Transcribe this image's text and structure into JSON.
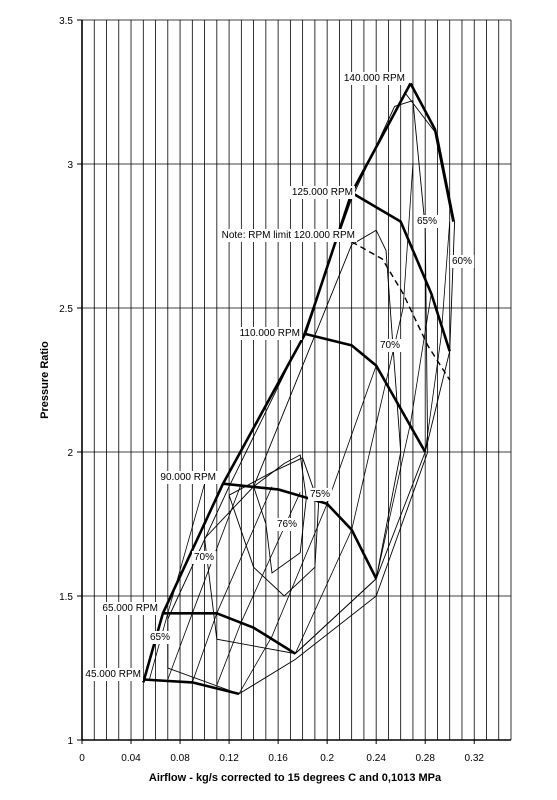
{
  "chart_data": {
    "type": "line",
    "xlabel": "Airflow - kg/s corrected to 15 degrees C and 0,1013 MPa",
    "ylabel": "Pressure Ratio",
    "xlim": [
      0,
      0.35
    ],
    "ylim": [
      1,
      3.5
    ],
    "x_ticks": [
      0,
      0.04,
      0.08,
      0.12,
      0.16,
      0.2,
      0.24,
      0.28,
      0.32
    ],
    "x_tick_labels": [
      "0",
      "0.04",
      "0.08",
      "0.12",
      "0.16",
      "0.2",
      "0.24",
      "0.28",
      "0.32"
    ],
    "y_ticks": [
      1,
      1.5,
      2,
      2.5,
      3,
      3.5
    ],
    "y_tick_labels": [
      "1",
      "1.5",
      "2",
      "2.5",
      "3",
      "3.5"
    ],
    "grid": "on",
    "speed_lines": [
      {
        "label": "140.000 RPM",
        "points": [
          [
            0.268,
            3.28
          ],
          [
            0.288,
            3.12
          ],
          [
            0.303,
            2.8
          ]
        ]
      },
      {
        "label": "125.000 RPM",
        "points": [
          [
            0.22,
            2.9
          ],
          [
            0.26,
            2.8
          ],
          [
            0.285,
            2.55
          ],
          [
            0.3,
            2.35
          ]
        ]
      },
      {
        "label": "110.000 RPM",
        "points": [
          [
            0.182,
            2.41
          ],
          [
            0.22,
            2.37
          ],
          [
            0.24,
            2.3
          ],
          [
            0.28,
            2.0
          ]
        ]
      },
      {
        "label": "90.000 RPM",
        "points": [
          [
            0.115,
            1.89
          ],
          [
            0.16,
            1.87
          ],
          [
            0.2,
            1.82
          ],
          [
            0.22,
            1.73
          ],
          [
            0.24,
            1.56
          ]
        ]
      },
      {
        "label": "65.000 RPM",
        "points": [
          [
            0.066,
            1.44
          ],
          [
            0.11,
            1.44
          ],
          [
            0.14,
            1.39
          ],
          [
            0.174,
            1.3
          ]
        ]
      },
      {
        "label": "45.000 RPM",
        "points": [
          [
            0.05,
            1.21
          ],
          [
            0.09,
            1.2
          ],
          [
            0.128,
            1.16
          ]
        ]
      }
    ],
    "surge_line": [
      [
        0.05,
        1.2
      ],
      [
        0.066,
        1.44
      ],
      [
        0.115,
        1.89
      ],
      [
        0.182,
        2.41
      ],
      [
        0.22,
        2.9
      ],
      [
        0.268,
        3.28
      ]
    ],
    "rpm_limit_line": {
      "label": "Note: RPM limit 120.000 RPM",
      "points": [
        [
          0.22,
          2.73
        ],
        [
          0.245,
          2.67
        ],
        [
          0.262,
          2.55
        ],
        [
          0.282,
          2.37
        ],
        [
          0.3,
          2.25
        ]
      ]
    },
    "efficiency_labels": [
      "65%",
      "60%",
      "70%",
      "75%",
      "76%",
      "70%",
      "65%"
    ],
    "efficiency_islands": [
      {
        "label": "76%",
        "points": [
          [
            0.14,
            1.88
          ],
          [
            0.165,
            1.96
          ],
          [
            0.178,
            1.99
          ],
          [
            0.183,
            1.84
          ],
          [
            0.178,
            1.65
          ],
          [
            0.155,
            1.58
          ],
          [
            0.15,
            1.75
          ],
          [
            0.14,
            1.88
          ]
        ]
      },
      {
        "label": "75%",
        "points": [
          [
            0.12,
            1.85
          ],
          [
            0.155,
            1.93
          ],
          [
            0.18,
            1.98
          ],
          [
            0.193,
            1.82
          ],
          [
            0.19,
            1.6
          ],
          [
            0.165,
            1.5
          ],
          [
            0.14,
            1.6
          ],
          [
            0.12,
            1.85
          ]
        ]
      },
      {
        "label": "70%",
        "points": [
          [
            0.1,
            1.7
          ],
          [
            0.14,
            1.88
          ],
          [
            0.22,
            2.72
          ],
          [
            0.24,
            2.77
          ],
          [
            0.248,
            2.7
          ],
          [
            0.26,
            2.0
          ],
          [
            0.24,
            1.56
          ],
          [
            0.174,
            1.3
          ],
          [
            0.11,
            1.35
          ],
          [
            0.1,
            1.7
          ]
        ]
      },
      {
        "label": "65%",
        "points": [
          [
            0.07,
            1.42
          ],
          [
            0.12,
            1.88
          ],
          [
            0.18,
            2.4
          ],
          [
            0.22,
            2.88
          ],
          [
            0.255,
            3.2
          ],
          [
            0.27,
            3.22
          ],
          [
            0.28,
            2.78
          ],
          [
            0.282,
            2.0
          ],
          [
            0.24,
            1.5
          ],
          [
            0.174,
            1.28
          ],
          [
            0.128,
            1.16
          ],
          [
            0.07,
            1.25
          ],
          [
            0.07,
            1.42
          ]
        ]
      },
      {
        "label": "60%",
        "points": [
          [
            0.263,
            3.25
          ],
          [
            0.29,
            3.1
          ],
          [
            0.304,
            2.8
          ],
          [
            0.3,
            2.35
          ],
          [
            0.28,
            2.0
          ],
          [
            0.24,
            1.56
          ],
          [
            0.174,
            1.3
          ]
        ]
      }
    ]
  }
}
